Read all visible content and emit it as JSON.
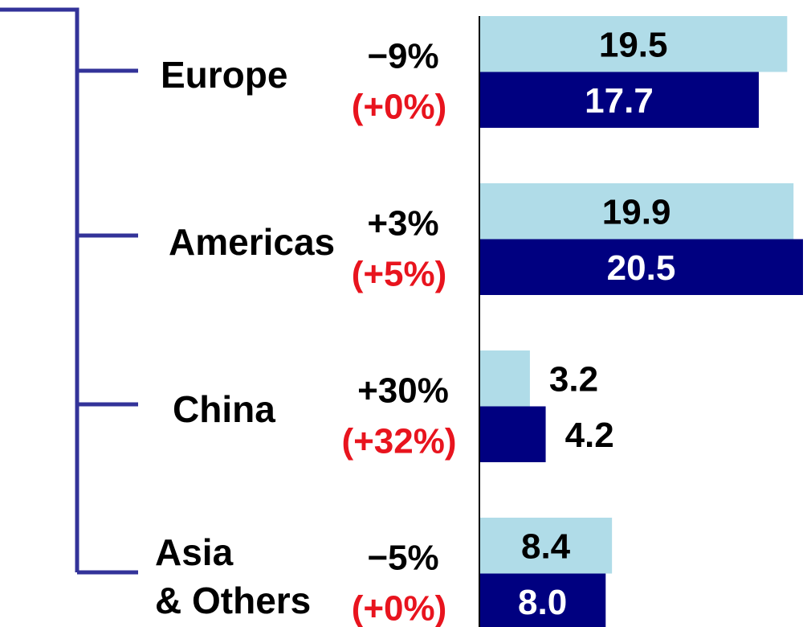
{
  "chart_data": {
    "type": "bar",
    "orientation": "horizontal",
    "categories": [
      "Europe",
      "Americas",
      "China",
      "Asia\n& Others"
    ],
    "changes": [
      "−9%",
      "+3%",
      "+30%",
      "−5%"
    ],
    "changes_local": [
      "(+0%)",
      "(+5%)",
      "(+32%)",
      "(+0%)"
    ],
    "series": [
      {
        "color": "#b0dce8",
        "values": [
          19.5,
          19.9,
          3.2,
          8.4
        ],
        "value_labels": [
          "19.5",
          "19.9",
          "3.2",
          "8.4"
        ]
      },
      {
        "color": "#000080",
        "values": [
          17.7,
          20.5,
          4.2,
          8.0
        ],
        "value_labels": [
          "17.7",
          "20.5",
          "4.2",
          "8.0"
        ]
      }
    ],
    "xlim": [
      0,
      20.5
    ]
  }
}
